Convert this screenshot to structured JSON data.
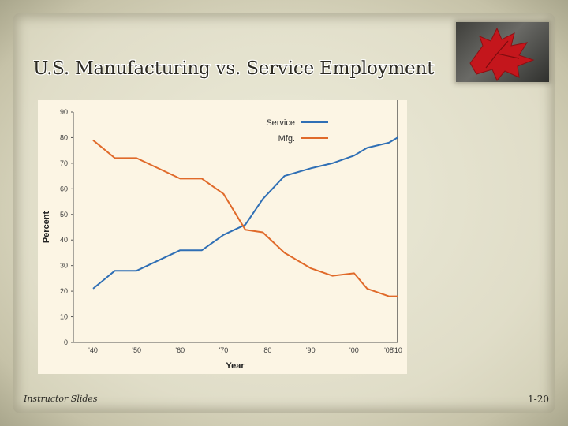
{
  "slide": {
    "title": "U.S. Manufacturing vs. Service Employment",
    "footer_left": "Instructor Slides",
    "page_number": "1-20"
  },
  "chart_data": {
    "type": "line",
    "title": "",
    "xlabel": "Year",
    "ylabel": "Percent",
    "x": [
      1940,
      1945,
      1950,
      1955,
      1960,
      1965,
      1970,
      1975,
      1979,
      1984,
      1990,
      1995,
      2000,
      2003,
      2008,
      2010
    ],
    "x_ticks": [
      1940,
      1950,
      1960,
      1970,
      1980,
      1990,
      2000,
      2008,
      2010
    ],
    "x_tick_labels": [
      "'40",
      "'50",
      "'60",
      "'70",
      "'80",
      "'90",
      "'00",
      "'08",
      "'10"
    ],
    "ylim": [
      0,
      90
    ],
    "y_ticks": [
      0,
      10,
      20,
      30,
      40,
      50,
      60,
      70,
      80,
      90
    ],
    "grid": false,
    "legend_position": "top-right",
    "series": [
      {
        "name": "Service",
        "color": "#2f6fb5",
        "values": [
          21,
          28,
          28,
          32,
          36,
          36,
          42,
          46,
          56,
          65,
          68,
          70,
          73,
          76,
          78,
          80
        ]
      },
      {
        "name": "Mfg.",
        "color": "#e06a2a",
        "values": [
          79,
          72,
          72,
          68,
          64,
          64,
          58,
          44,
          43,
          35,
          29,
          26,
          27,
          21,
          18,
          18
        ]
      }
    ]
  }
}
